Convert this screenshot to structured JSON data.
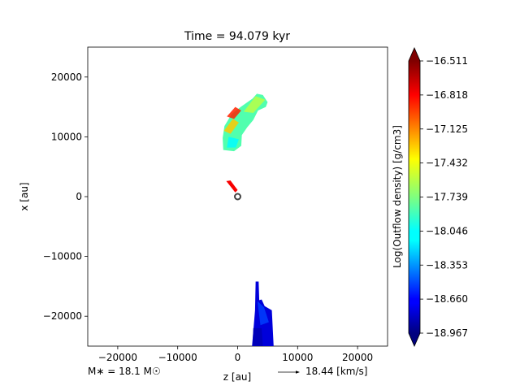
{
  "chart_data": {
    "type": "heatmap",
    "title": "Time = 94.079 kyr",
    "xlabel": "z [au]",
    "ylabel": "x [au]",
    "xlim": [
      -25000,
      25000
    ],
    "ylim": [
      -25000,
      25000
    ],
    "xticks": [
      -20000,
      -10000,
      0,
      10000,
      20000
    ],
    "xtick_labels": [
      "−20000",
      "−10000",
      "0",
      "10000",
      "20000"
    ],
    "yticks": [
      20000,
      10000,
      0,
      -10000,
      -20000
    ],
    "ytick_labels": [
      "20000",
      "10000",
      "0",
      "−10000",
      "−20000"
    ],
    "colorbar": {
      "label": "Log(Outflow density) [g/cm3]",
      "colormap": "jet",
      "range": [
        -18.967,
        -16.511
      ],
      "ticks": [
        -16.511,
        -16.818,
        -17.125,
        -17.432,
        -17.739,
        -18.046,
        -18.353,
        -18.66,
        -18.967
      ],
      "tick_labels": [
        "−16.511",
        "−16.818",
        "−17.125",
        "−17.432",
        "−17.739",
        "−18.046",
        "−18.353",
        "−18.660",
        "−18.967"
      ]
    },
    "regions": [
      {
        "name": "upper lobe",
        "outline": [
          [
            -2200,
            11800
          ],
          [
            -1000,
            13800
          ],
          [
            500,
            15000
          ],
          [
            2500,
            16400
          ],
          [
            3200,
            17200
          ],
          [
            4200,
            17000
          ],
          [
            5000,
            15800
          ],
          [
            4700,
            15000
          ],
          [
            3400,
            14400
          ],
          [
            2600,
            12800
          ],
          [
            1600,
            11600
          ],
          [
            700,
            10300
          ],
          [
            600,
            8500
          ],
          [
            -600,
            7600
          ],
          [
            -2400,
            7800
          ],
          [
            -2500,
            9800
          ]
        ],
        "value": -17.85
      },
      {
        "name": "inner jet",
        "outline": [
          [
            -1900,
            2600
          ],
          [
            -1200,
            2700
          ],
          [
            0,
            1100
          ],
          [
            -400,
            700
          ]
        ],
        "value": -16.8
      },
      {
        "name": "lower lobe",
        "outline": [
          [
            3000,
            -14200
          ],
          [
            3500,
            -14200
          ],
          [
            3600,
            -17300
          ],
          [
            4000,
            -17200
          ],
          [
            4500,
            -18300
          ],
          [
            5700,
            -19000
          ],
          [
            6000,
            -25000
          ],
          [
            2400,
            -25000
          ],
          [
            2900,
            -19000
          ]
        ],
        "value": -18.75
      }
    ],
    "star_marker": {
      "z": 0,
      "x": 0
    },
    "annotations": {
      "mass": "M∗ = 18.1 M☉",
      "velocity_key": "18.44 [km/s]"
    }
  }
}
